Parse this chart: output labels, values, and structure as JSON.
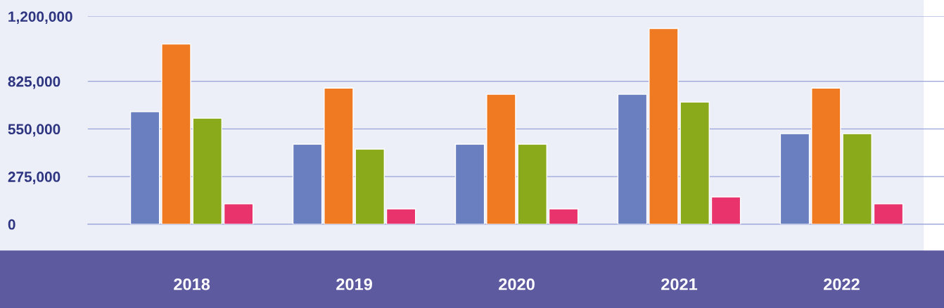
{
  "chart_data": {
    "type": "bar",
    "categories": [
      "2018",
      "2019",
      "2020",
      "2021",
      "2022"
    ],
    "series": [
      {
        "color": "#6a7fc0",
        "values": [
          650000,
          462000,
          462000,
          750000,
          523000
        ]
      },
      {
        "color": "#f07a22",
        "values": [
          1040000,
          786000,
          750000,
          1130000,
          786000
        ]
      },
      {
        "color": "#8aaa1c",
        "values": [
          612000,
          434000,
          462000,
          705000,
          523000
        ]
      },
      {
        "color": "#e8336c",
        "values": [
          118000,
          89000,
          89000,
          158000,
          118000
        ]
      }
    ],
    "ylim": [
      0,
      1200000
    ],
    "yticks": [
      {
        "value": 0,
        "label": "0"
      },
      {
        "value": 275000,
        "label": "275,000"
      },
      {
        "value": 550000,
        "label": "550,000"
      },
      {
        "value": 825000,
        "label": "825,000"
      },
      {
        "value": 1200000,
        "label": "1,200,000"
      }
    ],
    "grid": "y"
  }
}
